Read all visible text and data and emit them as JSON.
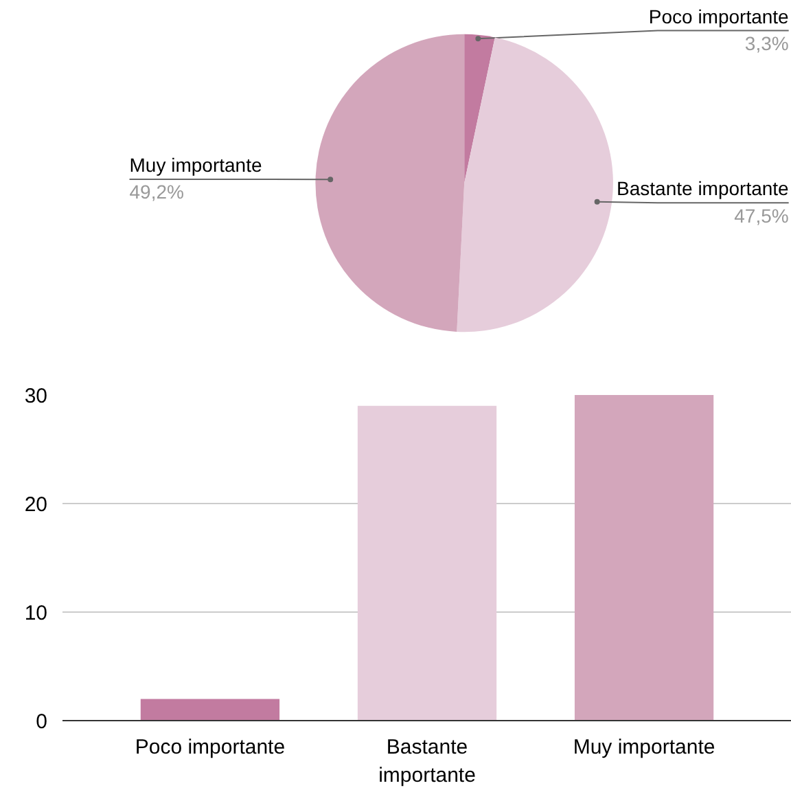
{
  "chart_data": [
    {
      "type": "pie",
      "categories": [
        "Poco importante",
        "Bastante importante",
        "Muy importante"
      ],
      "values": [
        3.3,
        47.5,
        49.2
      ],
      "colors": [
        "#c27ba0",
        "#e6cddb",
        "#d3a6bb"
      ],
      "value_labels": [
        "3,3%",
        "47,5%",
        "49,2%"
      ]
    },
    {
      "type": "bar",
      "categories": [
        "Poco importante",
        "Bastante importante",
        "Muy importante"
      ],
      "values": [
        2,
        29,
        30
      ],
      "colors": [
        "#c27ba0",
        "#e6cddb",
        "#d3a6bb"
      ],
      "ylim": [
        0,
        30
      ],
      "yticks": [
        0,
        10,
        20,
        30
      ],
      "grid": "y"
    }
  ]
}
